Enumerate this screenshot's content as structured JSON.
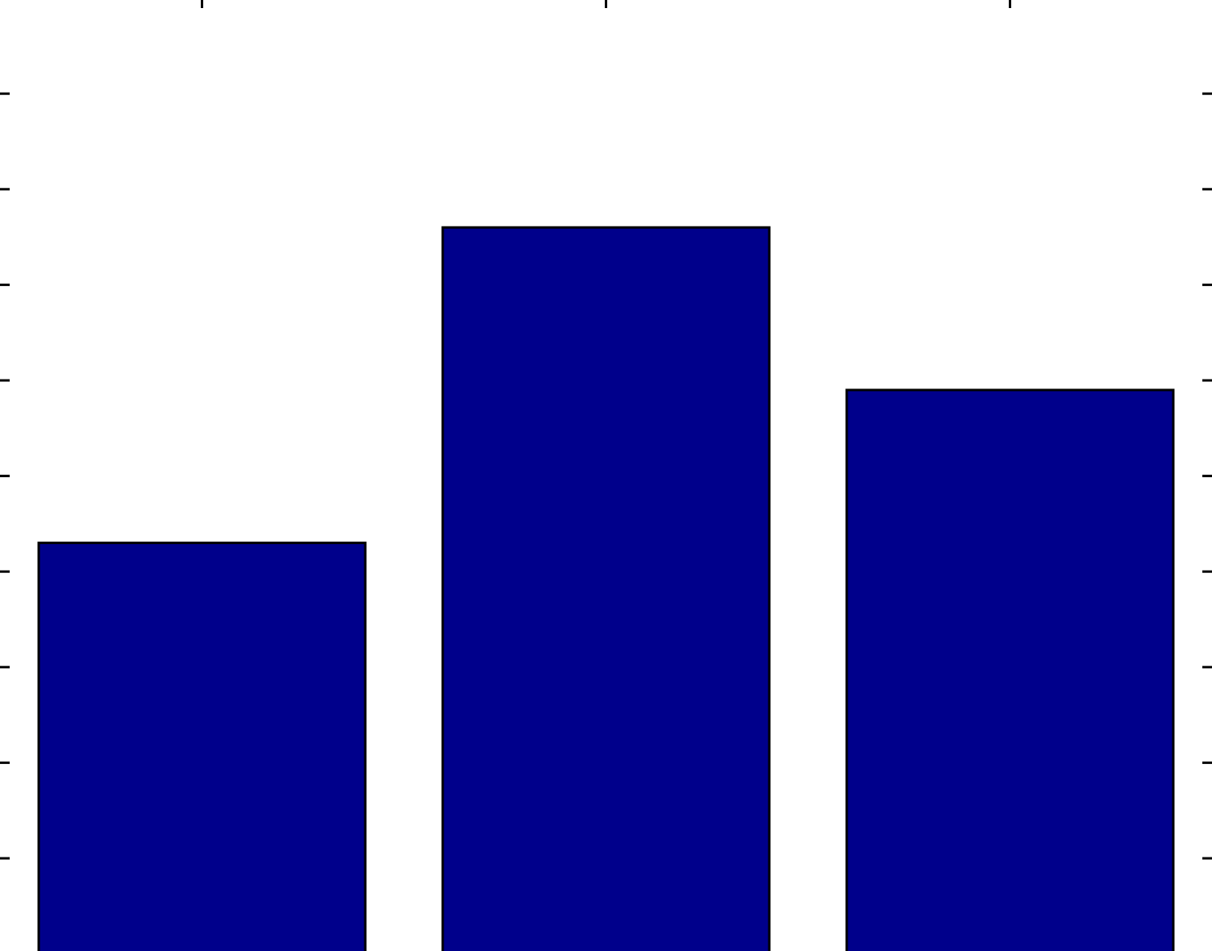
{
  "chart_data": {
    "type": "bar",
    "categories": [
      "",
      "",
      ""
    ],
    "values": [
      3.3,
      6.6,
      4.9
    ],
    "ylim": [
      -1.0,
      9.0
    ],
    "yticks": [
      0,
      1,
      2,
      3,
      4,
      5,
      6,
      7,
      8,
      9
    ],
    "grid": false,
    "legend": "none",
    "colors": {
      "bar_fill": "#00008b",
      "bar_edge": "#000000",
      "axis": "#000000",
      "background": "#ffffff"
    }
  }
}
